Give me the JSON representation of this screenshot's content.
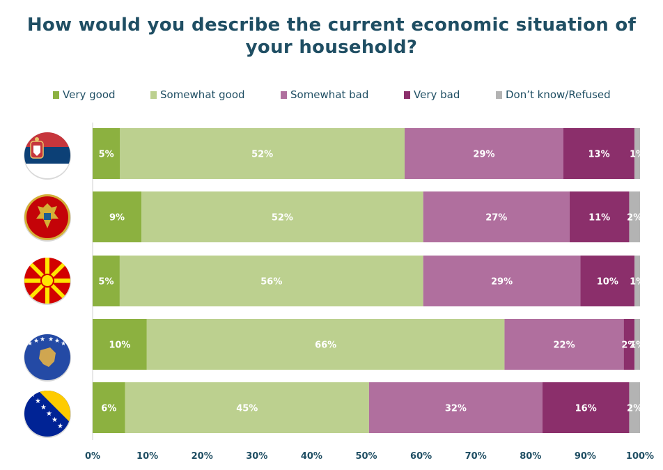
{
  "title": "How would you describe the current economic situation of your household?",
  "colors": {
    "very_good": "#8cb140",
    "somewhat_good": "#bcd08f",
    "somewhat_bad": "#b06f9e",
    "very_bad": "#8b2f6b",
    "dont_know": "#b3b3b3",
    "title": "#1f4e63"
  },
  "rows": [
    {
      "flag_icon": "serbia-flag-icon"
    },
    {
      "flag_icon": "montenegro-flag-icon"
    },
    {
      "flag_icon": "north-macedonia-flag-icon"
    },
    {
      "flag_icon": "kosovo-flag-icon"
    },
    {
      "flag_icon": "bosnia-herzegovina-flag-icon"
    }
  ],
  "chart_data": {
    "type": "bar",
    "orientation": "horizontal",
    "stacked": true,
    "percent_stacked": true,
    "categories": [
      "",
      "",
      "",
      "",
      ""
    ],
    "series": [
      {
        "name": "Very good",
        "values": [
          5,
          9,
          5,
          10,
          6
        ],
        "labels": [
          "5%",
          "9%",
          "5%",
          "10%",
          "6%"
        ]
      },
      {
        "name": "Somewhat good",
        "values": [
          52,
          52,
          56,
          66,
          45
        ],
        "labels": [
          "52%",
          "52%",
          "56%",
          "66%",
          "45%"
        ]
      },
      {
        "name": "Somewhat bad",
        "values": [
          29,
          27,
          29,
          22,
          32
        ],
        "labels": [
          "29%",
          "27%",
          "29%",
          "22%",
          "32%"
        ]
      },
      {
        "name": "Very bad",
        "values": [
          13,
          11,
          10,
          2,
          16
        ],
        "labels": [
          "13%",
          "11%",
          "10%",
          "2%",
          "16%"
        ]
      },
      {
        "name": "Don’t know/Refused",
        "values": [
          1,
          2,
          1,
          1,
          2
        ],
        "labels": [
          "1%",
          "2%",
          "1%",
          "1%",
          "2%"
        ]
      }
    ],
    "xlim": [
      0,
      100
    ],
    "xticks": [
      "0%",
      "10%",
      "20%",
      "30%",
      "40%",
      "50%",
      "60%",
      "70%",
      "80%",
      "90%",
      "100%"
    ],
    "legend_position": "top",
    "grid": false
  }
}
